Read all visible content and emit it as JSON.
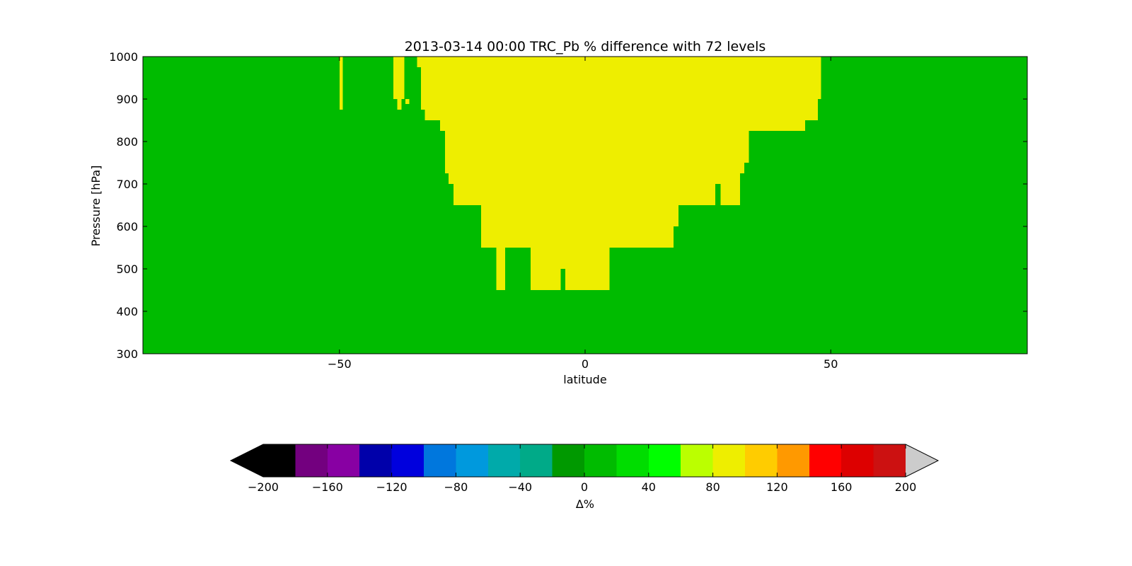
{
  "chart_data": [
    {
      "type": "heatmap",
      "title": "2013-03-14 00:00 TRC_Pb % difference with 72 levels",
      "xlabel": "latitude",
      "ylabel": "Pressure [hPa]",
      "xlim": [
        -90,
        90
      ],
      "ylim": [
        300,
        1000
      ],
      "y_inverted": true,
      "grid": false,
      "xticks": [
        -50,
        0,
        50
      ],
      "xtick_labels": [
        "−50",
        "0",
        "50"
      ],
      "yticks": [
        300,
        400,
        500,
        600,
        700,
        800,
        900,
        1000
      ],
      "yticks_labels": [
        "300",
        "400",
        "500",
        "600",
        "700",
        "800",
        "900",
        "1000"
      ],
      "background_value": 0,
      "background_color": "#00bb00",
      "cells": [
        {
          "x0": -50.0,
          "x1": -49.3,
          "top": 1000,
          "bottom": 875,
          "value": 90
        },
        {
          "x0": -39.0,
          "x1": -36.8,
          "top": 1000,
          "bottom": 900,
          "value": 90
        },
        {
          "x0": -38.2,
          "x1": -37.4,
          "top": 900,
          "bottom": 875,
          "value": 90
        },
        {
          "x0": -36.6,
          "x1": -35.8,
          "top": 900,
          "bottom": 888,
          "value": 90
        },
        {
          "x0": -34.2,
          "x1": -33.4,
          "top": 1000,
          "bottom": 975,
          "value": 90
        },
        {
          "x0": -33.4,
          "x1": 48.0,
          "top": 1000,
          "bottom": 900,
          "value": 90
        },
        {
          "x0": -33.4,
          "x1": 47.4,
          "top": 900,
          "bottom": 875,
          "value": 90
        },
        {
          "x0": -32.6,
          "x1": 47.4,
          "top": 875,
          "bottom": 850,
          "value": 90
        },
        {
          "x0": -29.5,
          "x1": 44.8,
          "top": 850,
          "bottom": 825,
          "value": 90
        },
        {
          "x0": 42.0,
          "x1": 42.2,
          "top": 850,
          "bottom": 825,
          "value": 90
        },
        {
          "x0": -28.5,
          "x1": 33.3,
          "top": 825,
          "bottom": 750,
          "value": 90
        },
        {
          "x0": -28.5,
          "x1": 32.4,
          "top": 750,
          "bottom": 725,
          "value": 90
        },
        {
          "x0": -27.8,
          "x1": 31.5,
          "top": 725,
          "bottom": 700,
          "value": 90
        },
        {
          "x0": -26.8,
          "x1": 26.5,
          "top": 700,
          "bottom": 650,
          "value": 90
        },
        {
          "x0": 27.6,
          "x1": 31.5,
          "top": 700,
          "bottom": 650,
          "value": 90
        },
        {
          "x0": -21.2,
          "x1": 19.0,
          "top": 650,
          "bottom": 600,
          "value": 90
        },
        {
          "x0": -21.2,
          "x1": 18.0,
          "top": 600,
          "bottom": 550,
          "value": 90
        },
        {
          "x0": -18.1,
          "x1": -16.3,
          "top": 550,
          "bottom": 450,
          "value": 90
        },
        {
          "x0": -11.1,
          "x1": -5.0,
          "top": 550,
          "bottom": 450,
          "value": 90
        },
        {
          "x0": -5.0,
          "x1": -4.0,
          "top": 550,
          "bottom": 500,
          "value": 90
        },
        {
          "x0": -4.0,
          "x1": 5.0,
          "top": 550,
          "bottom": 450,
          "value": 90
        }
      ]
    },
    {
      "type": "colorbar",
      "label": "∆%",
      "vmin": -200,
      "vmax": 200,
      "extend": "both",
      "under_color": "#000000",
      "over_color": "#cccccc",
      "bins": [
        {
          "from": -200,
          "to": -180,
          "color": "#000000"
        },
        {
          "from": -180,
          "to": -160,
          "color": "#73007f"
        },
        {
          "from": -160,
          "to": -140,
          "color": "#8800a3"
        },
        {
          "from": -140,
          "to": -120,
          "color": "#0000aa"
        },
        {
          "from": -120,
          "to": -100,
          "color": "#0000dd"
        },
        {
          "from": -100,
          "to": -80,
          "color": "#0077dd"
        },
        {
          "from": -80,
          "to": -60,
          "color": "#0099dd"
        },
        {
          "from": -60,
          "to": -40,
          "color": "#00aaaa"
        },
        {
          "from": -40,
          "to": -20,
          "color": "#00aa88"
        },
        {
          "from": -20,
          "to": 0,
          "color": "#009900"
        },
        {
          "from": 0,
          "to": 20,
          "color": "#00bb00"
        },
        {
          "from": 20,
          "to": 40,
          "color": "#00dd00"
        },
        {
          "from": 40,
          "to": 60,
          "color": "#00ff00"
        },
        {
          "from": 60,
          "to": 80,
          "color": "#bbff00"
        },
        {
          "from": 80,
          "to": 100,
          "color": "#eeee00"
        },
        {
          "from": 100,
          "to": 120,
          "color": "#ffcc00"
        },
        {
          "from": 120,
          "to": 140,
          "color": "#ff9900"
        },
        {
          "from": 140,
          "to": 160,
          "color": "#ff0000"
        },
        {
          "from": 160,
          "to": 180,
          "color": "#dd0000"
        },
        {
          "from": 180,
          "to": 200,
          "color": "#cc1111"
        }
      ],
      "ticks": [
        -200,
        -160,
        -120,
        -80,
        -40,
        0,
        40,
        80,
        120,
        160,
        200
      ],
      "tick_labels": [
        "−200",
        "−160",
        "−120",
        "−80",
        "−40",
        "0",
        "40",
        "80",
        "120",
        "160",
        "200"
      ]
    }
  ]
}
